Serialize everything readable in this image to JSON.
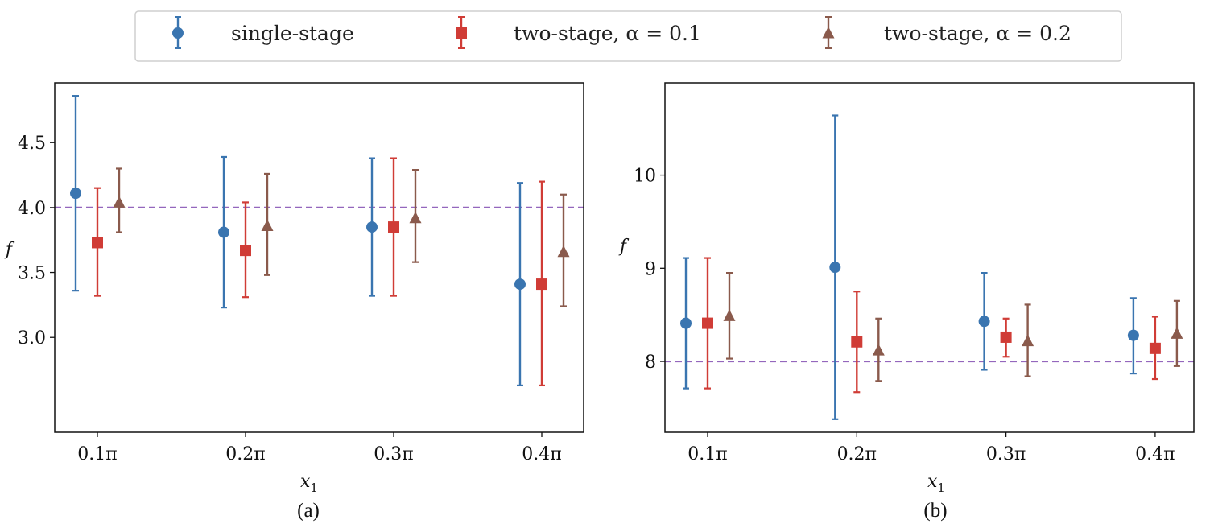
{
  "colors": {
    "single": "#3a75b0",
    "two01": "#d03c36",
    "two02": "#8a5a4c",
    "ref": "#9467bd"
  },
  "legend": [
    {
      "label": "single-stage",
      "marker": "circle-icon",
      "color": "#3a75b0"
    },
    {
      "label": "two-stage, α = 0.1",
      "marker": "square-icon",
      "color": "#d03c36"
    },
    {
      "label": "two-stage, α = 0.2",
      "marker": "triangle-icon",
      "color": "#8a5a4c"
    }
  ],
  "chart_data": [
    {
      "type": "scatter",
      "panel": "(a)",
      "xlabel": "x",
      "xlabel_sub": "1",
      "ylabel": "f",
      "categories": [
        "0.1π",
        "0.2π",
        "0.3π",
        "0.4π"
      ],
      "yticks": [
        "3.0",
        "3.5",
        "4.0",
        "4.5"
      ],
      "ylim": [
        2.27,
        4.96
      ],
      "reference_line": 4.0,
      "series": [
        {
          "name": "single-stage",
          "marker": "circle",
          "offset": -0.15,
          "values": [
            4.11,
            3.81,
            3.85,
            3.41
          ],
          "lower": [
            3.36,
            3.23,
            3.32,
            2.63
          ],
          "upper": [
            4.86,
            4.39,
            4.38,
            4.19
          ]
        },
        {
          "name": "two-stage, α = 0.1",
          "marker": "square",
          "offset": 0.0,
          "values": [
            3.73,
            3.67,
            3.85,
            3.41
          ],
          "lower": [
            3.32,
            3.31,
            3.32,
            2.63
          ],
          "upper": [
            4.15,
            4.04,
            4.38,
            4.2
          ]
        },
        {
          "name": "two-stage, α = 0.2",
          "marker": "triangle",
          "offset": 0.15,
          "values": [
            4.04,
            3.86,
            3.92,
            3.66
          ],
          "lower": [
            3.81,
            3.48,
            3.58,
            3.24
          ],
          "upper": [
            4.3,
            4.26,
            4.29,
            4.1
          ]
        }
      ]
    },
    {
      "type": "scatter",
      "panel": "(b)",
      "xlabel": "x",
      "xlabel_sub": "1",
      "ylabel": "f",
      "categories": [
        "0.1π",
        "0.2π",
        "0.3π",
        "0.4π"
      ],
      "yticks": [
        "8",
        "9",
        "10"
      ],
      "ylim": [
        7.24,
        10.99
      ],
      "reference_line": 8.0,
      "series": [
        {
          "name": "single-stage",
          "marker": "circle",
          "offset": -0.15,
          "values": [
            8.41,
            9.01,
            8.43,
            8.28
          ],
          "lower": [
            7.71,
            7.38,
            7.91,
            7.87
          ],
          "upper": [
            9.11,
            10.64,
            8.95,
            8.68
          ]
        },
        {
          "name": "two-stage, α = 0.1",
          "marker": "square",
          "offset": 0.0,
          "values": [
            8.41,
            8.21,
            8.26,
            8.14
          ],
          "lower": [
            7.71,
            7.67,
            8.05,
            7.81
          ],
          "upper": [
            9.11,
            8.75,
            8.46,
            8.48
          ]
        },
        {
          "name": "two-stage, α = 0.2",
          "marker": "triangle",
          "offset": 0.15,
          "values": [
            8.49,
            8.12,
            8.22,
            8.3
          ],
          "lower": [
            8.03,
            7.79,
            7.84,
            7.95
          ],
          "upper": [
            8.95,
            8.46,
            8.61,
            8.65
          ]
        }
      ]
    }
  ]
}
